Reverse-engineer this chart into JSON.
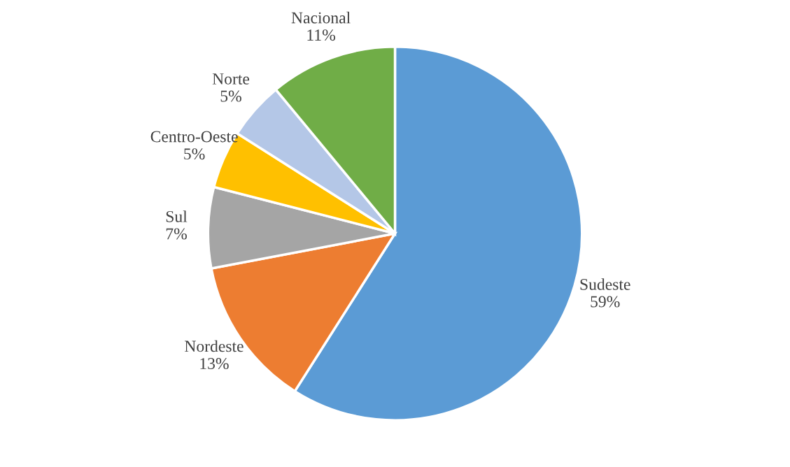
{
  "chart_data": {
    "type": "pie",
    "categories": [
      "Sudeste",
      "Nordeste",
      "Sul",
      "Centro-Oeste",
      "Norte",
      "Nacional"
    ],
    "values": [
      59,
      13,
      7,
      5,
      5,
      11
    ],
    "value_labels": [
      "59%",
      "13%",
      "7%",
      "5%",
      "5%",
      "11%"
    ],
    "colors": [
      "#5b9bd5",
      "#ed7d31",
      "#a5a5a5",
      "#ffc000",
      "#b4c7e7",
      "#70ad47"
    ],
    "legend": false
  }
}
